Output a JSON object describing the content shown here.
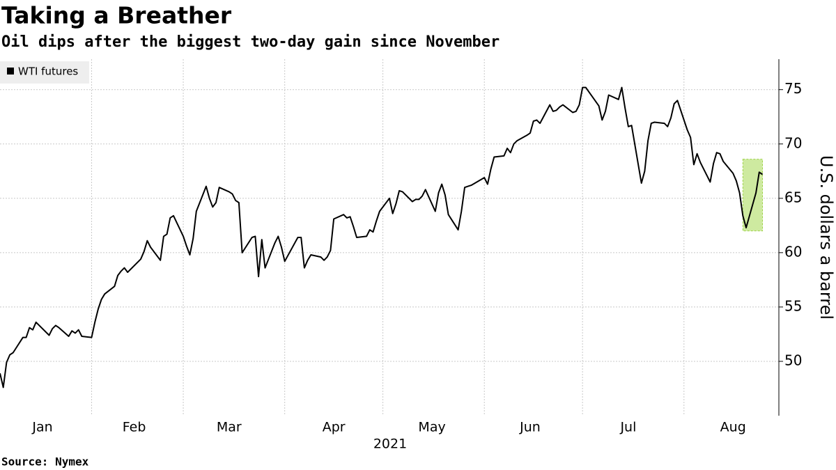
{
  "chart_data": {
    "type": "line",
    "title": "Taking a Breather",
    "subtitle": "Oil dips after the biggest two-day gain since November",
    "source": "Source: Nymex",
    "y_axis_label": "U.S. dollars a barrel",
    "x_axis_label": "2021",
    "xlim": [
      "2021-01-04",
      "2021-08-30"
    ],
    "xticks": [
      {
        "value": "2021-01-17",
        "label": "Jan"
      },
      {
        "value": "2021-02-14",
        "label": "Feb"
      },
      {
        "value": "2021-03-15",
        "label": "Mar"
      },
      {
        "value": "2021-04-16",
        "label": "Apr"
      },
      {
        "value": "2021-05-16",
        "label": "May"
      },
      {
        "value": "2021-06-15",
        "label": "Jun"
      },
      {
        "value": "2021-07-15",
        "label": "Jul"
      },
      {
        "value": "2021-08-16",
        "label": "Aug"
      }
    ],
    "xgrid": [
      "2021-02-01",
      "2021-03-01",
      "2021-04-01",
      "2021-05-01",
      "2021-06-01",
      "2021-07-01",
      "2021-08-01"
    ],
    "ylim": [
      45,
      77.8
    ],
    "yticks": [
      50,
      55,
      60,
      65,
      70,
      75
    ],
    "grid": true,
    "legend": "top-left",
    "highlight": {
      "x": [
        "2021-08-19",
        "2021-08-25"
      ],
      "y": [
        62,
        68.6
      ],
      "color": "#c6e68f",
      "border": "#9fd34a"
    },
    "x": [
      "2021-01-04",
      "2021-01-05",
      "2021-01-06",
      "2021-01-07",
      "2021-01-08",
      "2021-01-11",
      "2021-01-12",
      "2021-01-13",
      "2021-01-14",
      "2021-01-15",
      "2021-01-19",
      "2021-01-20",
      "2021-01-21",
      "2021-01-22",
      "2021-01-25",
      "2021-01-26",
      "2021-01-27",
      "2021-01-28",
      "2021-01-29",
      "2021-02-01",
      "2021-02-02",
      "2021-02-03",
      "2021-02-04",
      "2021-02-05",
      "2021-02-08",
      "2021-02-09",
      "2021-02-10",
      "2021-02-11",
      "2021-02-12",
      "2021-02-16",
      "2021-02-17",
      "2021-02-18",
      "2021-02-19",
      "2021-02-22",
      "2021-02-23",
      "2021-02-24",
      "2021-02-25",
      "2021-02-26",
      "2021-03-01",
      "2021-03-02",
      "2021-03-03",
      "2021-03-04",
      "2021-03-05",
      "2021-03-08",
      "2021-03-09",
      "2021-03-10",
      "2021-03-11",
      "2021-03-12",
      "2021-03-15",
      "2021-03-16",
      "2021-03-17",
      "2021-03-18",
      "2021-03-19",
      "2021-03-22",
      "2021-03-23",
      "2021-03-24",
      "2021-03-25",
      "2021-03-26",
      "2021-03-29",
      "2021-03-30",
      "2021-03-31",
      "2021-04-01",
      "2021-04-05",
      "2021-04-06",
      "2021-04-07",
      "2021-04-08",
      "2021-04-09",
      "2021-04-12",
      "2021-04-13",
      "2021-04-14",
      "2021-04-15",
      "2021-04-16",
      "2021-04-19",
      "2021-04-20",
      "2021-04-21",
      "2021-04-22",
      "2021-04-23",
      "2021-04-26",
      "2021-04-27",
      "2021-04-28",
      "2021-04-29",
      "2021-04-30",
      "2021-05-03",
      "2021-05-04",
      "2021-05-05",
      "2021-05-06",
      "2021-05-07",
      "2021-05-10",
      "2021-05-11",
      "2021-05-12",
      "2021-05-13",
      "2021-05-14",
      "2021-05-17",
      "2021-05-18",
      "2021-05-19",
      "2021-05-20",
      "2021-05-21",
      "2021-05-24",
      "2021-05-25",
      "2021-05-26",
      "2021-05-27",
      "2021-05-28",
      "2021-06-01",
      "2021-06-02",
      "2021-06-03",
      "2021-06-04",
      "2021-06-07",
      "2021-06-08",
      "2021-06-09",
      "2021-06-10",
      "2021-06-11",
      "2021-06-14",
      "2021-06-15",
      "2021-06-16",
      "2021-06-17",
      "2021-06-18",
      "2021-06-21",
      "2021-06-22",
      "2021-06-23",
      "2021-06-24",
      "2021-06-25",
      "2021-06-28",
      "2021-06-29",
      "2021-06-30",
      "2021-07-01",
      "2021-07-02",
      "2021-07-06",
      "2021-07-07",
      "2021-07-08",
      "2021-07-09",
      "2021-07-12",
      "2021-07-13",
      "2021-07-14",
      "2021-07-15",
      "2021-07-16",
      "2021-07-19",
      "2021-07-20",
      "2021-07-21",
      "2021-07-22",
      "2021-07-23",
      "2021-07-26",
      "2021-07-27",
      "2021-07-28",
      "2021-07-29",
      "2021-07-30",
      "2021-08-02",
      "2021-08-03",
      "2021-08-04",
      "2021-08-05",
      "2021-08-06",
      "2021-08-09",
      "2021-08-10",
      "2021-08-11",
      "2021-08-12",
      "2021-08-13",
      "2021-08-16",
      "2021-08-17",
      "2021-08-18",
      "2021-08-19",
      "2021-08-20",
      "2021-08-23",
      "2021-08-24",
      "2021-08-25"
    ],
    "series": [
      {
        "name": "WTI futures",
        "color": "#000000",
        "values": [
          48.9,
          47.6,
          49.9,
          50.6,
          50.8,
          52.2,
          52.2,
          53.1,
          52.9,
          53.6,
          52.4,
          53.0,
          53.3,
          53.1,
          52.3,
          52.8,
          52.6,
          52.9,
          52.3,
          52.2,
          53.6,
          54.8,
          55.7,
          56.2,
          56.9,
          57.9,
          58.3,
          58.6,
          58.2,
          59.4,
          60.1,
          61.1,
          60.5,
          59.3,
          61.5,
          61.7,
          63.2,
          63.4,
          61.5,
          60.6,
          59.8,
          61.3,
          63.8,
          66.1,
          65.0,
          64.2,
          64.6,
          66.0,
          65.6,
          65.4,
          64.8,
          64.6,
          60.0,
          61.4,
          61.5,
          57.8,
          61.2,
          58.6,
          60.9,
          61.5,
          60.5,
          59.2,
          61.4,
          61.4,
          58.6,
          59.3,
          59.8,
          59.6,
          59.3,
          59.6,
          60.2,
          63.1,
          63.5,
          63.2,
          63.3,
          62.4,
          61.4,
          61.5,
          62.1,
          61.9,
          62.9,
          63.8,
          65.0,
          63.6,
          64.5,
          65.7,
          65.6,
          64.7,
          64.9,
          64.9,
          65.2,
          65.8,
          63.8,
          65.5,
          66.3,
          65.3,
          63.5,
          62.1,
          63.8,
          66.0,
          66.1,
          66.2,
          66.9,
          66.3,
          67.7,
          68.8,
          68.9,
          69.6,
          69.2,
          70.0,
          70.3,
          70.8,
          71.0,
          72.1,
          72.2,
          71.9,
          73.6,
          73.0,
          73.1,
          73.4,
          73.6,
          72.9,
          73.0,
          73.6,
          75.2,
          75.2,
          73.5,
          72.2,
          73.0,
          74.5,
          74.1,
          75.2,
          73.3,
          71.6,
          71.7,
          66.4,
          67.5,
          70.3,
          71.9,
          72.0,
          71.9,
          71.6,
          72.4,
          73.7,
          74.0,
          71.3,
          70.6,
          68.1,
          69.1,
          68.3,
          66.5,
          68.2,
          69.2,
          69.1,
          68.4,
          67.3,
          66.6,
          65.5,
          63.4,
          62.3,
          65.5,
          67.4,
          67.2
        ]
      }
    ]
  }
}
